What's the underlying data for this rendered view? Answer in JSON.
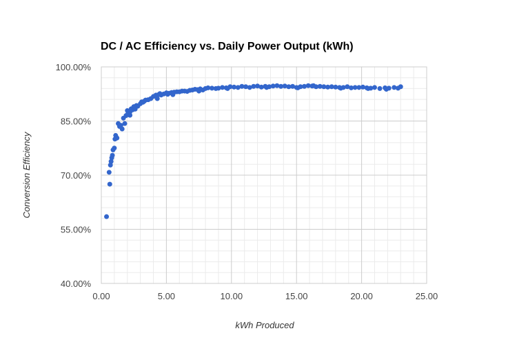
{
  "chart_data": {
    "type": "scatter",
    "title": "DC / AC Efficiency vs. Daily Power Output (kWh)",
    "xlabel": "kWh Produced",
    "ylabel": "Conversion Efficiency",
    "xlim": [
      0,
      25
    ],
    "ylim": [
      40,
      100
    ],
    "x_ticks": [
      "0.00",
      "5.00",
      "10.00",
      "15.00",
      "20.00",
      "25.00"
    ],
    "y_ticks": [
      "40.00%",
      "55.00%",
      "70.00%",
      "85.00%",
      "100.00%"
    ],
    "minor_grid": true,
    "legend": "none",
    "point_color": "#3366cc",
    "series": [
      {
        "x": [
          0.4,
          0.6,
          0.65,
          0.7,
          0.75,
          0.8,
          0.85,
          0.9,
          1.0,
          1.05,
          1.1,
          1.15,
          1.2,
          1.3,
          1.4,
          1.5,
          1.6,
          1.7,
          1.8,
          1.9,
          2.0,
          2.1,
          2.2,
          2.3,
          2.4,
          2.5,
          2.6,
          2.7,
          2.8,
          3.0,
          3.1,
          3.2,
          3.4,
          3.6,
          3.8,
          4.0,
          4.2,
          4.3,
          4.4,
          4.5,
          4.6,
          4.8,
          5.0,
          5.1,
          5.2,
          5.4,
          5.6,
          5.8,
          6.0,
          6.2,
          6.4,
          6.6,
          6.8,
          7.0,
          7.2,
          7.4,
          7.6,
          7.8,
          8.0,
          8.2,
          8.5,
          8.8,
          9.0,
          9.3,
          9.6,
          9.9,
          10.2,
          10.5,
          10.8,
          11.1,
          11.4,
          11.7,
          12.0,
          12.3,
          12.6,
          12.9,
          13.2,
          13.5,
          13.8,
          14.1,
          14.4,
          14.7,
          15.0,
          15.3,
          15.6,
          15.9,
          16.2,
          16.5,
          16.8,
          17.1,
          17.4,
          17.7,
          18.0,
          18.3,
          18.6,
          18.9,
          19.2,
          19.5,
          19.8,
          20.1,
          20.4,
          20.7,
          21.0,
          21.4,
          21.8,
          22.1,
          22.5,
          22.8,
          23.0,
          2.0,
          2.2,
          2.6,
          3.3,
          5.5,
          7.5,
          9.7,
          12.7,
          15.1,
          16.3,
          18.4,
          20.5,
          21.9
        ],
        "y": [
          58.5,
          70.8,
          67.5,
          72.8,
          73.8,
          74.8,
          75.5,
          77.0,
          77.5,
          80.0,
          81.0,
          80.5,
          80.3,
          84.3,
          83.5,
          83.8,
          82.8,
          85.8,
          84.3,
          86.5,
          87.9,
          87.0,
          86.6,
          88.4,
          88.1,
          89.0,
          88.3,
          89.3,
          89.1,
          89.8,
          90.3,
          90.2,
          90.8,
          90.9,
          91.2,
          91.8,
          92.2,
          91.2,
          92.3,
          92.6,
          92.2,
          92.5,
          92.8,
          92.4,
          92.7,
          92.9,
          93.0,
          93.1,
          93.1,
          93.3,
          93.3,
          93.2,
          93.5,
          93.6,
          93.8,
          93.7,
          93.9,
          93.6,
          94.0,
          94.2,
          94.1,
          94.0,
          94.1,
          94.3,
          94.2,
          94.5,
          94.4,
          94.3,
          94.6,
          94.5,
          94.3,
          94.6,
          94.7,
          94.4,
          94.6,
          94.5,
          94.7,
          94.8,
          94.6,
          94.7,
          94.5,
          94.6,
          94.3,
          94.5,
          94.6,
          94.8,
          94.7,
          94.5,
          94.6,
          94.5,
          94.4,
          94.5,
          94.4,
          94.3,
          94.3,
          94.5,
          94.2,
          94.3,
          94.3,
          94.4,
          94.2,
          94.1,
          94.3,
          94.0,
          94.2,
          94.1,
          94.3,
          94.1,
          94.5,
          86.8,
          87.5,
          88.6,
          90.5,
          92.3,
          93.3,
          94.0,
          94.3,
          94.2,
          94.8,
          94.1,
          94.0,
          93.8
        ]
      }
    ]
  }
}
